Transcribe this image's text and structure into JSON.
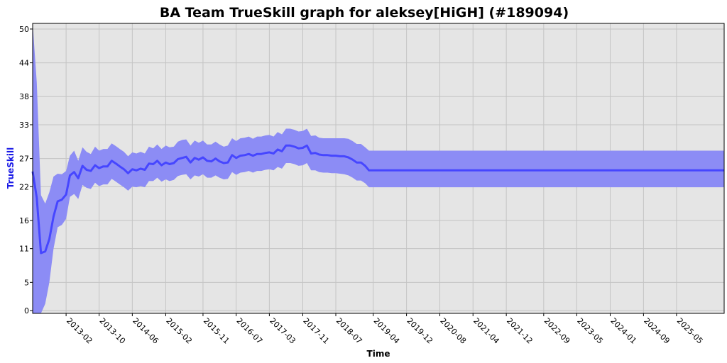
{
  "chart_data": {
    "type": "line",
    "title": "BA Team TrueSkill graph for aleksey[HiGH] (#189094)",
    "xlabel": "Time",
    "ylabel": "TrueSkill",
    "ylim": [
      -0.5,
      51
    ],
    "xlim": [
      "2012-06-01",
      "2026-04-15"
    ],
    "yticks": [
      "0",
      "5",
      "11",
      "16",
      "22",
      "27",
      "33",
      "38",
      "44",
      "50"
    ],
    "xticks": [
      "2013-02",
      "2013-10",
      "2014-06",
      "2015-02",
      "2015-11",
      "2016-07",
      "2017-03",
      "2017-11",
      "2018-07",
      "2019-04",
      "2019-12",
      "2020-08",
      "2021-04",
      "2021-12",
      "2022-09",
      "2023-05",
      "2024-01",
      "2024-09",
      "2025-05"
    ],
    "grid": true,
    "colors": {
      "line": "#4646ff",
      "band": "#8c8cf5",
      "plot_bg": "#e5e5e5",
      "grid": "#c4c4c4"
    },
    "series": [
      {
        "x": [
          "2012-06-01",
          "2012-07-01",
          "2012-08-01",
          "2012-09-01",
          "2012-10-01",
          "2012-11-01",
          "2012-12-01",
          "2013-01-01",
          "2013-02-01",
          "2013-03-01",
          "2013-04-01",
          "2013-05-01",
          "2013-06-01",
          "2013-07-01",
          "2013-08-01",
          "2013-09-01",
          "2013-10-01",
          "2013-11-01",
          "2013-12-01",
          "2014-01-01",
          "2014-02-01",
          "2014-03-01",
          "2014-04-01",
          "2014-05-01",
          "2014-06-01",
          "2014-07-01",
          "2014-08-01",
          "2014-09-01",
          "2014-10-01",
          "2014-11-01",
          "2014-12-01",
          "2015-01-01",
          "2015-02-01",
          "2015-03-01",
          "2015-04-01",
          "2015-05-01",
          "2015-06-01",
          "2015-07-01",
          "2015-08-01",
          "2015-09-01",
          "2015-10-01",
          "2015-11-01",
          "2015-12-01",
          "2016-01-01",
          "2016-02-01",
          "2016-03-01",
          "2016-04-01",
          "2016-05-01",
          "2016-06-01",
          "2016-07-01",
          "2016-08-01",
          "2016-09-01",
          "2016-10-01",
          "2016-11-01",
          "2016-12-01",
          "2017-01-01",
          "2017-02-01",
          "2017-03-01",
          "2017-04-01",
          "2017-05-01",
          "2017-06-01",
          "2017-07-01",
          "2017-08-01",
          "2017-09-01",
          "2017-10-01",
          "2017-11-01",
          "2017-12-01",
          "2018-01-01",
          "2018-02-01",
          "2018-03-01",
          "2018-04-01",
          "2018-05-01",
          "2018-06-01",
          "2018-07-01",
          "2018-08-01",
          "2018-09-01",
          "2018-10-01",
          "2018-11-01",
          "2018-12-01",
          "2019-01-01",
          "2019-02-01",
          "2019-03-01",
          "2019-04-01",
          "2026-04-15"
        ],
        "mu": [
          24.7,
          20.0,
          10.2,
          10.5,
          12.7,
          16.7,
          19.4,
          19.7,
          20.6,
          24.0,
          24.6,
          23.5,
          25.7,
          25.0,
          24.8,
          25.8,
          25.3,
          25.6,
          25.6,
          26.6,
          26.1,
          25.6,
          25.1,
          24.4,
          25.1,
          24.9,
          25.2,
          25.0,
          26.1,
          26.0,
          26.6,
          25.8,
          26.3,
          26.0,
          26.2,
          26.9,
          27.1,
          27.3,
          26.3,
          27.1,
          26.8,
          27.2,
          26.6,
          26.5,
          27.0,
          26.5,
          26.2,
          26.3,
          27.6,
          27.1,
          27.5,
          27.6,
          27.8,
          27.5,
          27.8,
          27.8,
          28.0,
          28.1,
          27.9,
          28.6,
          28.3,
          29.3,
          29.3,
          29.1,
          28.8,
          28.9,
          29.3,
          27.9,
          28.0,
          27.7,
          27.6,
          27.6,
          27.5,
          27.5,
          27.4,
          27.4,
          27.2,
          26.8,
          26.3,
          26.3,
          25.7,
          24.9,
          24.9,
          24.9
        ],
        "upper": [
          51.0,
          40.5,
          20.5,
          19.0,
          21.0,
          23.8,
          24.3,
          24.2,
          24.8,
          27.5,
          28.4,
          26.6,
          29.0,
          28.2,
          27.8,
          29.1,
          28.4,
          28.7,
          28.7,
          29.7,
          29.2,
          28.7,
          28.2,
          27.4,
          28.1,
          27.9,
          28.2,
          27.9,
          29.1,
          28.8,
          29.5,
          28.7,
          29.3,
          29.0,
          29.1,
          30.0,
          30.3,
          30.4,
          29.3,
          30.2,
          29.8,
          30.2,
          29.5,
          29.5,
          30.0,
          29.5,
          29.1,
          29.3,
          30.6,
          30.1,
          30.6,
          30.7,
          30.9,
          30.5,
          30.9,
          30.9,
          31.1,
          31.2,
          30.9,
          31.7,
          31.3,
          32.3,
          32.3,
          32.1,
          31.8,
          31.9,
          32.3,
          31.0,
          31.1,
          30.7,
          30.6,
          30.6,
          30.6,
          30.6,
          30.6,
          30.6,
          30.5,
          30.1,
          29.6,
          29.6,
          29.0,
          28.4,
          28.4,
          28.4
        ],
        "lower": [
          -0.5,
          -0.5,
          -0.5,
          1.2,
          5.0,
          11.0,
          14.8,
          15.2,
          16.3,
          20.2,
          20.7,
          19.8,
          22.3,
          21.8,
          21.6,
          22.7,
          22.1,
          22.4,
          22.4,
          23.4,
          22.9,
          22.4,
          21.9,
          21.3,
          22.0,
          21.9,
          22.1,
          21.9,
          23.0,
          23.0,
          23.6,
          22.9,
          23.3,
          23.0,
          23.2,
          23.9,
          24.1,
          24.2,
          23.3,
          24.0,
          23.8,
          24.2,
          23.6,
          23.6,
          24.0,
          23.6,
          23.3,
          23.4,
          24.6,
          24.1,
          24.5,
          24.6,
          24.8,
          24.5,
          24.8,
          24.8,
          25.0,
          25.1,
          24.9,
          25.5,
          25.2,
          26.2,
          26.2,
          26.0,
          25.7,
          25.8,
          26.2,
          24.9,
          24.9,
          24.6,
          24.5,
          24.5,
          24.4,
          24.4,
          24.3,
          24.2,
          24.0,
          23.6,
          23.1,
          23.1,
          22.6,
          21.9,
          21.9,
          21.9
        ]
      }
    ]
  }
}
